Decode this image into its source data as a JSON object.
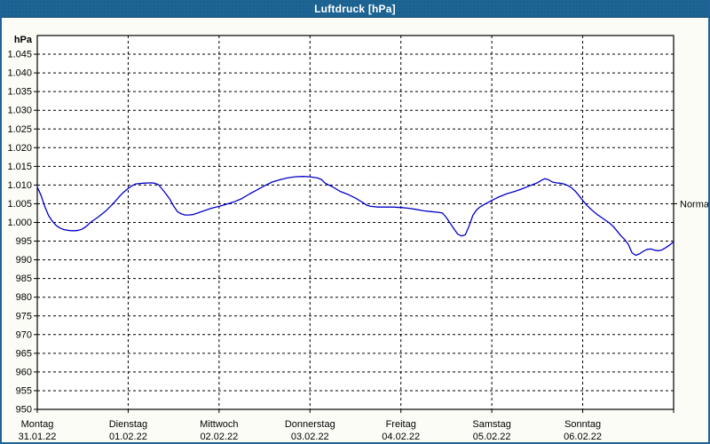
{
  "window": {
    "title": "Luftdruck [hPa]"
  },
  "chart_data": {
    "type": "line",
    "title": "Luftdruck [hPa]",
    "y_axis_unit": "hPa",
    "ylim": [
      950,
      1050
    ],
    "grid": "dashed",
    "colors": {
      "line": "#0000c8",
      "titlebar": "#1d6594",
      "window_border": "#20639a",
      "background": "#fcfcf7",
      "plot_background": "#ffffff",
      "axis": "#000000"
    },
    "y_ticks": [
      {
        "value": 1045,
        "label": "1.045"
      },
      {
        "value": 1040,
        "label": "1.040"
      },
      {
        "value": 1035,
        "label": "1.035"
      },
      {
        "value": 1030,
        "label": "1.030"
      },
      {
        "value": 1025,
        "label": "1.025"
      },
      {
        "value": 1020,
        "label": "1.020"
      },
      {
        "value": 1015,
        "label": "1.015"
      },
      {
        "value": 1010,
        "label": "1.010"
      },
      {
        "value": 1005,
        "label": "1.005"
      },
      {
        "value": 1000,
        "label": "1.000"
      },
      {
        "value": 995,
        "label": "995"
      },
      {
        "value": 990,
        "label": "990"
      },
      {
        "value": 985,
        "label": "985"
      },
      {
        "value": 980,
        "label": "980"
      },
      {
        "value": 975,
        "label": "975"
      },
      {
        "value": 970,
        "label": "970"
      },
      {
        "value": 965,
        "label": "965"
      },
      {
        "value": 960,
        "label": "960"
      },
      {
        "value": 955,
        "label": "955"
      },
      {
        "value": 950,
        "label": "950"
      }
    ],
    "x_days": [
      {
        "name": "Montag",
        "date": "31.01.22"
      },
      {
        "name": "Dienstag",
        "date": "01.02.22"
      },
      {
        "name": "Mittwoch",
        "date": "02.02.22"
      },
      {
        "name": "Donnerstag",
        "date": "03.02.22"
      },
      {
        "name": "Freitag",
        "date": "04.02.22"
      },
      {
        "name": "Samstag",
        "date": "05.02.22"
      },
      {
        "name": "Sonntag",
        "date": "06.02.22"
      }
    ],
    "x_total_hours": 168,
    "normal_marker": {
      "label": "Normal",
      "value": 1005
    },
    "series": [
      {
        "name": "Luftdruck",
        "color": "#0000c8",
        "points_hour_hpa": [
          [
            0,
            1009.5
          ],
          [
            1,
            1007.2
          ],
          [
            2,
            1004.2
          ],
          [
            3,
            1001.8
          ],
          [
            4,
            1000.3
          ],
          [
            5,
            999.2
          ],
          [
            6,
            998.5
          ],
          [
            7,
            998.1
          ],
          [
            8,
            997.9
          ],
          [
            9,
            997.8
          ],
          [
            10,
            997.8
          ],
          [
            11,
            997.9
          ],
          [
            12,
            998.3
          ],
          [
            13,
            999.0
          ],
          [
            14,
            1000.0
          ],
          [
            16,
            1001.4
          ],
          [
            18,
            1003.0
          ],
          [
            20,
            1005.0
          ],
          [
            22,
            1007.3
          ],
          [
            23,
            1008.3
          ],
          [
            24,
            1009.1
          ],
          [
            25,
            1009.8
          ],
          [
            26,
            1010.3
          ],
          [
            28,
            1010.5
          ],
          [
            30,
            1010.6
          ],
          [
            31,
            1010.5
          ],
          [
            32,
            1010.1
          ],
          [
            33,
            1008.9
          ],
          [
            34,
            1007.6
          ],
          [
            35,
            1006.2
          ],
          [
            36,
            1004.4
          ],
          [
            37,
            1002.9
          ],
          [
            38,
            1002.3
          ],
          [
            39,
            1002.0
          ],
          [
            40,
            1002.0
          ],
          [
            41,
            1002.1
          ],
          [
            42,
            1002.4
          ],
          [
            44,
            1003.1
          ],
          [
            46,
            1003.8
          ],
          [
            48,
            1004.3
          ],
          [
            50,
            1004.9
          ],
          [
            52,
            1005.5
          ],
          [
            54,
            1006.4
          ],
          [
            56,
            1007.6
          ],
          [
            58,
            1008.7
          ],
          [
            60,
            1009.8
          ],
          [
            62,
            1010.8
          ],
          [
            64,
            1011.4
          ],
          [
            66,
            1011.9
          ],
          [
            68,
            1012.2
          ],
          [
            70,
            1012.3
          ],
          [
            72,
            1012.2
          ],
          [
            74,
            1011.9
          ],
          [
            75,
            1011.5
          ],
          [
            76,
            1010.5
          ],
          [
            78,
            1009.5
          ],
          [
            80,
            1008.3
          ],
          [
            82,
            1007.5
          ],
          [
            84,
            1006.5
          ],
          [
            86,
            1005.3
          ],
          [
            87,
            1004.6
          ],
          [
            88,
            1004.3
          ],
          [
            90,
            1004.1
          ],
          [
            92,
            1004.1
          ],
          [
            94,
            1004.1
          ],
          [
            96,
            1004.0
          ],
          [
            98,
            1003.8
          ],
          [
            100,
            1003.5
          ],
          [
            102,
            1003.1
          ],
          [
            104,
            1002.9
          ],
          [
            106,
            1002.7
          ],
          [
            107,
            1002.5
          ],
          [
            108,
            1001.3
          ],
          [
            109,
            999.8
          ],
          [
            110,
            998.3
          ],
          [
            111,
            996.9
          ],
          [
            112,
            996.4
          ],
          [
            113,
            996.7
          ],
          [
            114,
            999.0
          ],
          [
            115,
            1001.9
          ],
          [
            116,
            1003.4
          ],
          [
            117,
            1004.2
          ],
          [
            118,
            1004.8
          ],
          [
            120,
            1005.9
          ],
          [
            122,
            1006.9
          ],
          [
            124,
            1007.7
          ],
          [
            126,
            1008.3
          ],
          [
            128,
            1009.0
          ],
          [
            130,
            1009.8
          ],
          [
            132,
            1010.6
          ],
          [
            133,
            1011.2
          ],
          [
            134,
            1011.7
          ],
          [
            135,
            1011.4
          ],
          [
            136,
            1010.8
          ],
          [
            137,
            1010.6
          ],
          [
            138,
            1010.5
          ],
          [
            139,
            1010.3
          ],
          [
            140,
            1009.9
          ],
          [
            141,
            1009.3
          ],
          [
            142,
            1008.4
          ],
          [
            143,
            1007.2
          ],
          [
            144,
            1005.9
          ],
          [
            145,
            1004.7
          ],
          [
            146,
            1003.7
          ],
          [
            147,
            1002.8
          ],
          [
            148,
            1002.0
          ],
          [
            149,
            1001.3
          ],
          [
            150,
            1000.6
          ],
          [
            151,
            999.9
          ],
          [
            152,
            999.0
          ],
          [
            153,
            997.8
          ],
          [
            154,
            996.5
          ],
          [
            155,
            995.5
          ],
          [
            156,
            994.2
          ],
          [
            157,
            991.9
          ],
          [
            158,
            991.2
          ],
          [
            159,
            991.6
          ],
          [
            160,
            992.3
          ],
          [
            161,
            992.8
          ],
          [
            162,
            992.9
          ],
          [
            163,
            992.6
          ],
          [
            164,
            992.4
          ],
          [
            165,
            992.7
          ],
          [
            166,
            993.3
          ],
          [
            167,
            994.0
          ],
          [
            168,
            994.8
          ]
        ]
      }
    ]
  }
}
